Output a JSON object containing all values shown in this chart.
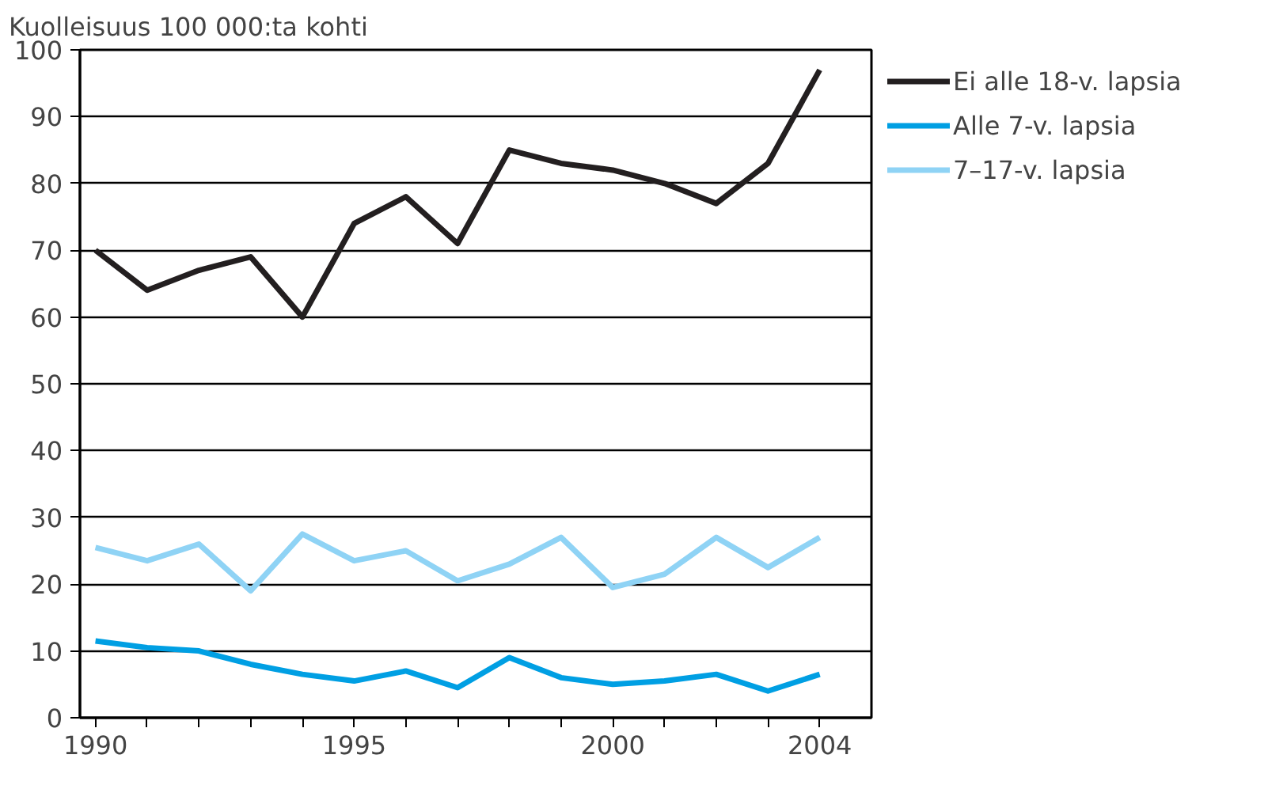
{
  "chart_data": {
    "type": "line",
    "ylabel": "Kuolleisuus 100 000:ta kohti",
    "x": [
      1990,
      1991,
      1992,
      1993,
      1994,
      1995,
      1996,
      1997,
      1998,
      1999,
      2000,
      2001,
      2002,
      2003,
      2004
    ],
    "series": [
      {
        "name": "Ei alle 18-v. lapsia",
        "color": "#231f20",
        "values": [
          70,
          64,
          67,
          69,
          60,
          74,
          78,
          71,
          85,
          83,
          82,
          80,
          77,
          83,
          97
        ]
      },
      {
        "name": "Alle 7-v. lapsia",
        "color": "#009fe3",
        "values": [
          11.5,
          10.5,
          10,
          8,
          6.5,
          5.5,
          7,
          4.5,
          9,
          6,
          5,
          5.5,
          6.5,
          4,
          6.5
        ]
      },
      {
        "name": "7–17-v. lapsia",
        "color": "#8fd3f5",
        "values": [
          25.5,
          23.5,
          26,
          19,
          27.5,
          23.5,
          25,
          20.5,
          23,
          27,
          19.5,
          21.5,
          27,
          22.5,
          27
        ]
      }
    ],
    "xlim": [
      1989.7,
      2005
    ],
    "xticks": [
      1990,
      {
        "value": 1991,
        "label": null
      },
      {
        "value": 1992,
        "label": null
      },
      {
        "value": 1993,
        "label": null
      },
      {
        "value": 1994,
        "label": null
      },
      1995,
      {
        "value": 1996,
        "label": null
      },
      {
        "value": 1997,
        "label": null
      },
      {
        "value": 1998,
        "label": null
      },
      {
        "value": 1999,
        "label": null
      },
      2000,
      {
        "value": 2001,
        "label": null
      },
      {
        "value": 2002,
        "label": null
      },
      {
        "value": 2003,
        "label": null
      },
      2004
    ],
    "ylim": [
      0,
      100
    ],
    "yticks": [
      0,
      10,
      20,
      30,
      40,
      50,
      60,
      70,
      80,
      90,
      100
    ],
    "grid": "y",
    "legend": "top right",
    "marker": "none",
    "line_style": "solid"
  }
}
